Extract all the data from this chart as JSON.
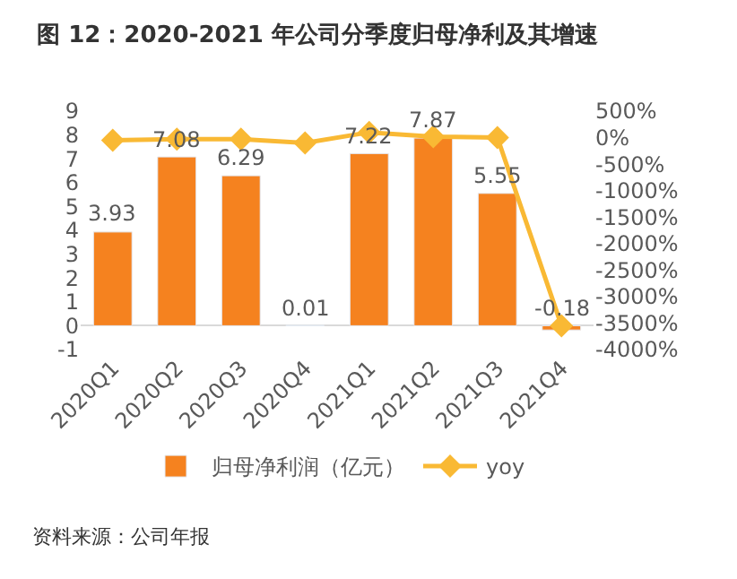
{
  "chart_data": {
    "type": "bar",
    "title": "图 12：2020-2021 年公司分季度归母净利及其增速",
    "categories": [
      "2020Q1",
      "2020Q2",
      "2020Q3",
      "2020Q4",
      "2021Q1",
      "2021Q2",
      "2021Q3",
      "2021Q4"
    ],
    "series": [
      {
        "name": "归母净利润（亿元）",
        "color": "#f5821f",
        "values": [
          3.93,
          7.08,
          6.29,
          0.01,
          7.22,
          7.87,
          5.55,
          -0.18
        ],
        "value_labels": [
          "3.93",
          "7.08",
          "6.29",
          "0.01",
          "7.22",
          "7.87",
          "5.55",
          "-0.18"
        ]
      },
      {
        "name": "yoy",
        "type": "line",
        "axis": "y2",
        "color": "#f9b934",
        "marker": "diamond",
        "values": [
          -50,
          -30,
          -30,
          -100,
          100,
          20,
          0,
          -3550
        ]
      }
    ],
    "ylim": [
      -1,
      9
    ],
    "yticks": [
      -1,
      0,
      1,
      2,
      3,
      4,
      5,
      6,
      7,
      8,
      9
    ],
    "y2lim": [
      -4000,
      500
    ],
    "y2ticks": [
      {
        "value": -4000,
        "label": "-4000%"
      },
      {
        "value": -3500,
        "label": "-3500%"
      },
      {
        "value": -3000,
        "label": "-3000%"
      },
      {
        "value": -2500,
        "label": "-2500%"
      },
      {
        "value": -2000,
        "label": "-2000%"
      },
      {
        "value": -1500,
        "label": "-1500%"
      },
      {
        "value": -1000,
        "label": "-1000%"
      },
      {
        "value": -500,
        "label": "-500%"
      },
      {
        "value": 0,
        "label": "0%"
      },
      {
        "value": 500,
        "label": "500%"
      }
    ],
    "legend": "bottom",
    "annotations": [
      "资料来源：公司年报"
    ]
  }
}
